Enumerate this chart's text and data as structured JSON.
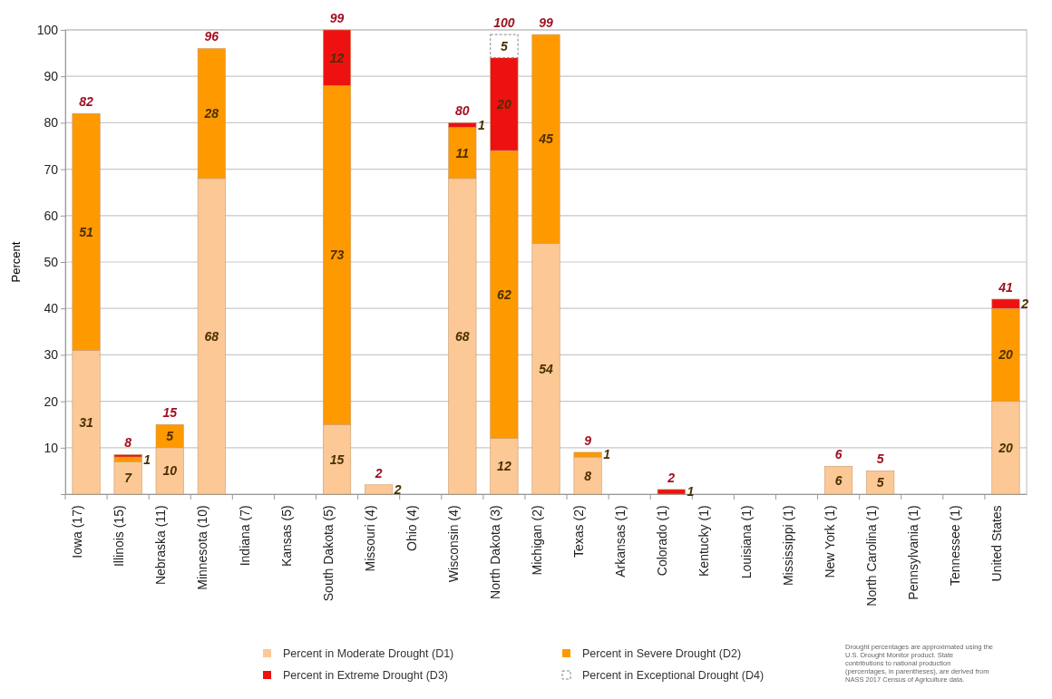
{
  "chart_data": {
    "type": "bar",
    "stacked": true,
    "ylabel": "Percent",
    "categories": [
      "Iowa (17)",
      "Illinois (15)",
      "Nebraska (11)",
      "Minnesota (10)",
      "Indiana (7)",
      "Kansas (5)",
      "South Dakota (5)",
      "Missouri (4)",
      "Ohio (4)",
      "Wisconsin (4)",
      "North Dakota (3)",
      "Michigan (2)",
      "Texas (2)",
      "Arkansas (1)",
      "Colorado (1)",
      "Kentucky (1)",
      "Louisiana (1)",
      "Mississippi (1)",
      "New York (1)",
      "North Carolina (1)",
      "Pennsylvania (1)",
      "Tennessee (1)",
      "United States"
    ],
    "series": [
      {
        "name": "Percent in Moderate Drought (D1)",
        "color": "#fcc896",
        "values": [
          31,
          7,
          10,
          68,
          null,
          null,
          15,
          2,
          null,
          68,
          12,
          54,
          8,
          null,
          null,
          null,
          null,
          null,
          6,
          5,
          null,
          null,
          20
        ],
        "value_labels": [
          "31",
          "7",
          "10",
          "68",
          null,
          null,
          "15",
          "2",
          null,
          "68",
          "12",
          "54",
          "8",
          null,
          null,
          null,
          null,
          null,
          "6",
          "5",
          null,
          null,
          "20"
        ]
      },
      {
        "name": "Percent in Severe Drought (D2)",
        "color": "#ff9900",
        "values": [
          51,
          1,
          5,
          28,
          null,
          null,
          73,
          null,
          null,
          11,
          62,
          45,
          1,
          null,
          null,
          null,
          null,
          null,
          null,
          null,
          null,
          null,
          20
        ],
        "value_labels": [
          "51",
          "1",
          "5",
          "28",
          null,
          null,
          "73",
          null,
          null,
          "11",
          "62",
          "45",
          "1",
          null,
          null,
          null,
          null,
          null,
          null,
          null,
          null,
          null,
          "20"
        ]
      },
      {
        "name": "Percent in Extreme Drought (D3)",
        "color": "#ee1111",
        "values": [
          null,
          0.5,
          null,
          null,
          null,
          null,
          12,
          null,
          null,
          1,
          20,
          null,
          null,
          null,
          1,
          null,
          null,
          null,
          null,
          null,
          null,
          null,
          2
        ],
        "value_labels": [
          null,
          null,
          null,
          null,
          null,
          null,
          "12",
          null,
          null,
          "1",
          "20",
          null,
          null,
          null,
          "1",
          null,
          null,
          null,
          null,
          null,
          null,
          null,
          "2"
        ]
      },
      {
        "name": "Percent in Exceptional Drought (D4)",
        "color": "#ffffff",
        "line_style": "dashed",
        "values": [
          null,
          null,
          null,
          null,
          null,
          null,
          null,
          null,
          null,
          null,
          5,
          null,
          null,
          null,
          null,
          null,
          null,
          null,
          null,
          null,
          null,
          null,
          null
        ],
        "value_labels": [
          null,
          null,
          null,
          null,
          null,
          null,
          null,
          null,
          null,
          null,
          "5",
          null,
          null,
          null,
          null,
          null,
          null,
          null,
          null,
          null,
          null,
          null,
          null
        ]
      }
    ],
    "totals": [
      "82",
      "8",
      "15",
      "96",
      null,
      null,
      "99",
      "2",
      null,
      "80",
      "100",
      "99",
      "9",
      null,
      "2",
      null,
      null,
      null,
      "6",
      "5",
      null,
      null,
      "41"
    ],
    "ylim": [
      0,
      100
    ],
    "yticks": [
      10,
      20,
      30,
      40,
      50,
      60,
      70,
      80,
      90,
      100
    ],
    "grid": "y",
    "legend": "bottom",
    "annotations": [
      "Drought percentages are approximated using the U.S. Drought Monitor product. State contributions to national production (percentages, in parentheses), are derived from NASS 2017 Census of Agriculture data."
    ]
  }
}
